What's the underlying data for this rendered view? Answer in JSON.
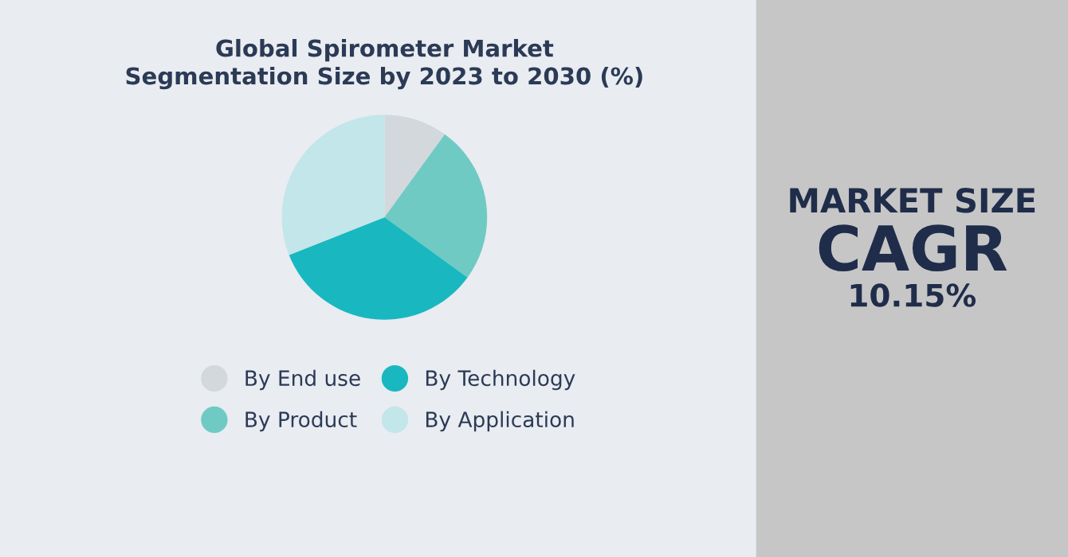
{
  "chart_data": [
    {
      "type": "pie",
      "title": "Global Spirometer Market\nSegmentation Size by 2023 to 2030 (%)",
      "categories": [
        "By End use",
        "By Product",
        "By Technology",
        "By Application"
      ],
      "values": [
        10,
        25,
        34,
        31
      ],
      "colors": [
        "#d3d8dd",
        "#6fcac4",
        "#19b8c0",
        "#c2e6ea"
      ],
      "legend": "bottom"
    },
    {
      "type": "other",
      "title": "MARKET SIZE",
      "subtitle": "CAGR",
      "annotations": [
        "10.15%"
      ]
    }
  ]
}
